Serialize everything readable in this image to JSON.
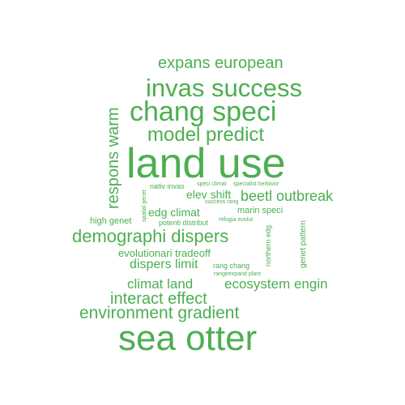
{
  "word_cloud": {
    "color": "#4caf50",
    "words": [
      {
        "text": "land use"
      },
      {
        "text": "sea otter"
      },
      {
        "text": "chang speci"
      },
      {
        "text": "invas success"
      },
      {
        "text": "demographi dispers"
      },
      {
        "text": "model predict"
      },
      {
        "text": "environment gradient"
      },
      {
        "text": "expans european"
      },
      {
        "text": "respons warm"
      },
      {
        "text": "interact effect"
      },
      {
        "text": "beetl outbreak"
      },
      {
        "text": "ecosystem engin"
      },
      {
        "text": "climat land"
      },
      {
        "text": "dispers limit"
      },
      {
        "text": "elev shift"
      },
      {
        "text": "edg climat"
      },
      {
        "text": "evolutionari tradeoff"
      },
      {
        "text": "high genet"
      },
      {
        "text": "marin speci"
      },
      {
        "text": "potenti distribut"
      },
      {
        "text": "genet pattern"
      },
      {
        "text": "northern edg"
      },
      {
        "text": "nativ invas"
      },
      {
        "text": "rang chang"
      },
      {
        "text": "spatial genet"
      },
      {
        "text": "speci climat"
      },
      {
        "text": "specialist herbivor"
      },
      {
        "text": "success rang"
      },
      {
        "text": "refugia evolut"
      },
      {
        "text": "rangeexpand plant"
      }
    ]
  }
}
